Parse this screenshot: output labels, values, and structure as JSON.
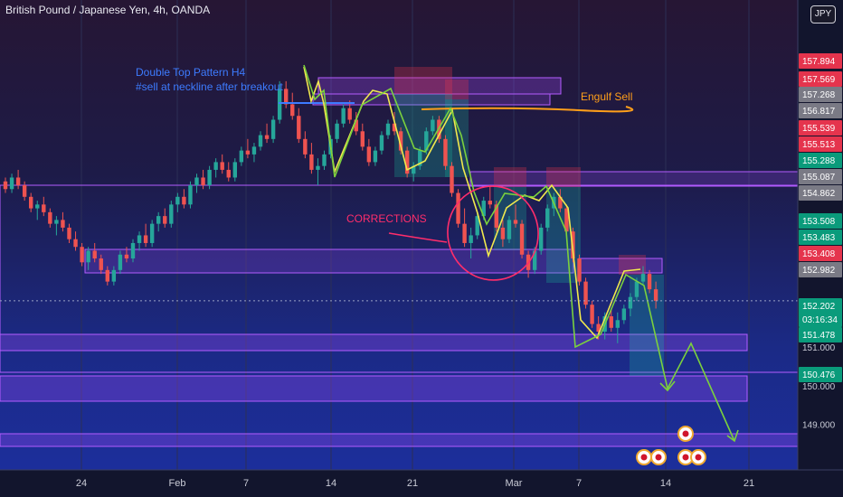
{
  "header": {
    "title": "British Pound / Japanese Yen, 4h, OANDA"
  },
  "currency_button": "JPY",
  "chart_data": {
    "type": "candlestick",
    "title": "British Pound / Japanese Yen, 4h, OANDA",
    "y_range": [
      148.4,
      158.6
    ],
    "x_tick_labels": [
      "24",
      "Feb",
      "7",
      "14",
      "21",
      "Mar",
      "7",
      "14",
      "21"
    ],
    "price_ticks": [
      "151.000",
      "150.000",
      "149.000"
    ],
    "price_labels": [
      {
        "value": 157.894,
        "text": "157.894",
        "color": "#e5344d"
      },
      {
        "value": 157.569,
        "text": "157.569",
        "color": "#e5344d"
      },
      {
        "value": 157.268,
        "text": "157.268",
        "color": "#7a7a85"
      },
      {
        "value": 156.817,
        "text": "156.817",
        "color": "#7a7a85"
      },
      {
        "value": 155.539,
        "text": "155.539",
        "color": "#e5344d"
      },
      {
        "value": 155.513,
        "text": "155.513",
        "color": "#e5344d"
      },
      {
        "value": 155.288,
        "text": "155.288",
        "color": "#0a9b7b"
      },
      {
        "value": 155.087,
        "text": "155.087",
        "color": "#7a7a85"
      },
      {
        "value": 154.862,
        "text": "154.862",
        "color": "#7a7a85"
      },
      {
        "value": 153.508,
        "text": "153.508",
        "color": "#0a9b7b"
      },
      {
        "value": 153.483,
        "text": "153.483",
        "color": "#0a9b7b"
      },
      {
        "value": 153.408,
        "text": "153.408",
        "color": "#e5344d"
      },
      {
        "value": 152.982,
        "text": "152.982",
        "color": "#7a7a85"
      },
      {
        "value": 152.202,
        "text": "152.202",
        "color": "#0a9b7b",
        "countdown": "03:16:34"
      },
      {
        "value": 151.478,
        "text": "151.478",
        "color": "#0a9b7b"
      },
      {
        "value": 150.476,
        "text": "150.476",
        "color": "#0a9b7b"
      }
    ],
    "annotations": [
      {
        "text": "Double Top Pattern H4",
        "color": "#3d7bff"
      },
      {
        "text": "#sell at neckline after breakout",
        "color": "#3d7bff"
      },
      {
        "text": "Engulf Sell",
        "color": "#ff9f1a"
      },
      {
        "text": "CORRECTIONS",
        "color": "#ff2d6b"
      }
    ],
    "candles": [
      [
        155.3,
        155.4,
        155.0,
        155.1
      ],
      [
        155.1,
        155.5,
        155.0,
        155.4
      ],
      [
        155.4,
        155.6,
        155.1,
        155.2
      ],
      [
        155.2,
        155.3,
        154.8,
        154.9
      ],
      [
        154.9,
        155.0,
        154.5,
        154.6
      ],
      [
        154.6,
        154.8,
        154.3,
        154.7
      ],
      [
        154.7,
        154.9,
        154.4,
        154.5
      ],
      [
        154.5,
        154.6,
        154.1,
        154.2
      ],
      [
        154.2,
        154.4,
        153.9,
        154.3
      ],
      [
        154.3,
        154.5,
        154.0,
        154.1
      ],
      [
        154.1,
        154.2,
        153.7,
        153.8
      ],
      [
        153.8,
        154.0,
        153.5,
        153.6
      ],
      [
        153.6,
        153.7,
        153.1,
        153.2
      ],
      [
        153.2,
        153.6,
        153.0,
        153.5
      ],
      [
        153.5,
        153.7,
        153.2,
        153.3
      ],
      [
        153.3,
        153.4,
        152.9,
        153.0
      ],
      [
        153.0,
        153.1,
        152.6,
        152.7
      ],
      [
        152.7,
        153.1,
        152.6,
        153.0
      ],
      [
        153.0,
        153.5,
        152.9,
        153.4
      ],
      [
        153.4,
        153.6,
        153.2,
        153.3
      ],
      [
        153.3,
        153.8,
        153.2,
        153.7
      ],
      [
        153.7,
        154.0,
        153.5,
        153.9
      ],
      [
        153.9,
        154.2,
        153.6,
        153.7
      ],
      [
        153.7,
        154.3,
        153.6,
        154.2
      ],
      [
        154.2,
        154.5,
        154.0,
        154.4
      ],
      [
        154.4,
        154.6,
        154.1,
        154.2
      ],
      [
        154.2,
        154.8,
        154.1,
        154.7
      ],
      [
        154.7,
        155.0,
        154.5,
        154.9
      ],
      [
        154.9,
        155.1,
        154.6,
        154.7
      ],
      [
        154.7,
        155.3,
        154.6,
        155.2
      ],
      [
        155.2,
        155.5,
        155.0,
        155.4
      ],
      [
        155.4,
        155.6,
        155.1,
        155.2
      ],
      [
        155.2,
        155.7,
        155.1,
        155.6
      ],
      [
        155.6,
        155.9,
        155.4,
        155.8
      ],
      [
        155.8,
        156.0,
        155.5,
        155.6
      ],
      [
        155.6,
        155.8,
        155.3,
        155.4
      ],
      [
        155.4,
        155.9,
        155.3,
        155.8
      ],
      [
        155.8,
        156.2,
        155.7,
        156.1
      ],
      [
        156.1,
        156.4,
        155.9,
        156.0
      ],
      [
        156.0,
        156.3,
        155.8,
        156.2
      ],
      [
        156.2,
        156.6,
        156.1,
        156.5
      ],
      [
        156.5,
        156.8,
        156.3,
        156.4
      ],
      [
        156.4,
        157.0,
        156.3,
        156.9
      ],
      [
        156.9,
        157.9,
        156.8,
        157.7
      ],
      [
        157.7,
        157.9,
        157.2,
        157.3
      ],
      [
        157.3,
        157.6,
        156.9,
        157.0
      ],
      [
        157.0,
        157.2,
        156.3,
        156.4
      ],
      [
        156.4,
        156.6,
        155.9,
        156.0
      ],
      [
        156.0,
        156.3,
        155.5,
        155.6
      ],
      [
        155.6,
        155.9,
        155.2,
        155.7
      ],
      [
        155.7,
        156.1,
        155.6,
        156.0
      ],
      [
        156.0,
        156.5,
        155.9,
        156.4
      ],
      [
        156.4,
        156.9,
        156.3,
        156.8
      ],
      [
        156.8,
        157.3,
        156.7,
        157.2
      ],
      [
        157.2,
        157.4,
        156.8,
        156.9
      ],
      [
        156.9,
        157.1,
        156.5,
        156.6
      ],
      [
        156.6,
        156.8,
        156.1,
        156.2
      ],
      [
        156.2,
        156.4,
        155.7,
        155.8
      ],
      [
        155.8,
        156.2,
        155.7,
        156.1
      ],
      [
        156.1,
        156.6,
        156.0,
        156.5
      ],
      [
        156.5,
        156.9,
        156.4,
        156.8
      ],
      [
        156.8,
        157.1,
        156.5,
        156.6
      ],
      [
        156.6,
        156.7,
        156.0,
        156.1
      ],
      [
        156.1,
        156.2,
        155.4,
        155.5
      ],
      [
        155.5,
        155.8,
        155.3,
        155.7
      ],
      [
        155.7,
        156.2,
        155.6,
        156.1
      ],
      [
        156.1,
        156.7,
        156.0,
        156.6
      ],
      [
        156.6,
        157.0,
        156.5,
        156.9
      ],
      [
        156.9,
        157.0,
        156.3,
        156.4
      ],
      [
        156.4,
        156.5,
        155.6,
        155.7
      ],
      [
        155.7,
        155.8,
        154.9,
        155.0
      ],
      [
        155.0,
        155.1,
        154.1,
        154.2
      ],
      [
        154.2,
        154.6,
        153.6,
        153.7
      ],
      [
        153.7,
        154.1,
        153.3,
        153.9
      ],
      [
        153.9,
        154.5,
        153.8,
        154.4
      ],
      [
        154.4,
        154.9,
        154.3,
        154.8
      ],
      [
        154.8,
        155.2,
        154.6,
        154.7
      ],
      [
        154.7,
        154.8,
        154.0,
        154.1
      ],
      [
        154.1,
        154.3,
        153.6,
        153.8
      ],
      [
        153.8,
        154.4,
        153.7,
        154.3
      ],
      [
        154.3,
        154.7,
        154.1,
        154.2
      ],
      [
        154.2,
        154.3,
        153.3,
        153.4
      ],
      [
        153.4,
        153.5,
        152.8,
        153.0
      ],
      [
        153.0,
        153.6,
        152.9,
        153.5
      ],
      [
        153.5,
        154.2,
        153.4,
        154.1
      ],
      [
        154.1,
        154.7,
        154.0,
        154.6
      ],
      [
        154.6,
        155.0,
        154.4,
        154.9
      ],
      [
        154.9,
        155.1,
        154.5,
        154.6
      ],
      [
        154.6,
        154.7,
        153.9,
        154.0
      ],
      [
        154.0,
        154.1,
        153.2,
        153.3
      ],
      [
        153.3,
        153.4,
        152.6,
        152.7
      ],
      [
        152.7,
        152.8,
        152.0,
        152.1
      ],
      [
        152.1,
        152.2,
        151.5,
        151.6
      ],
      [
        151.6,
        151.8,
        151.2,
        151.4
      ],
      [
        151.4,
        151.9,
        151.2,
        151.8
      ],
      [
        151.8,
        152.0,
        151.4,
        151.5
      ],
      [
        151.5,
        151.9,
        151.1,
        151.7
      ],
      [
        151.7,
        152.1,
        151.6,
        152.0
      ],
      [
        152.0,
        152.4,
        151.8,
        152.3
      ],
      [
        152.3,
        152.8,
        152.2,
        152.7
      ],
      [
        152.7,
        153.1,
        152.6,
        152.9
      ],
      [
        152.9,
        153.0,
        152.4,
        152.5
      ],
      [
        152.5,
        152.7,
        152.0,
        152.2
      ]
    ]
  }
}
